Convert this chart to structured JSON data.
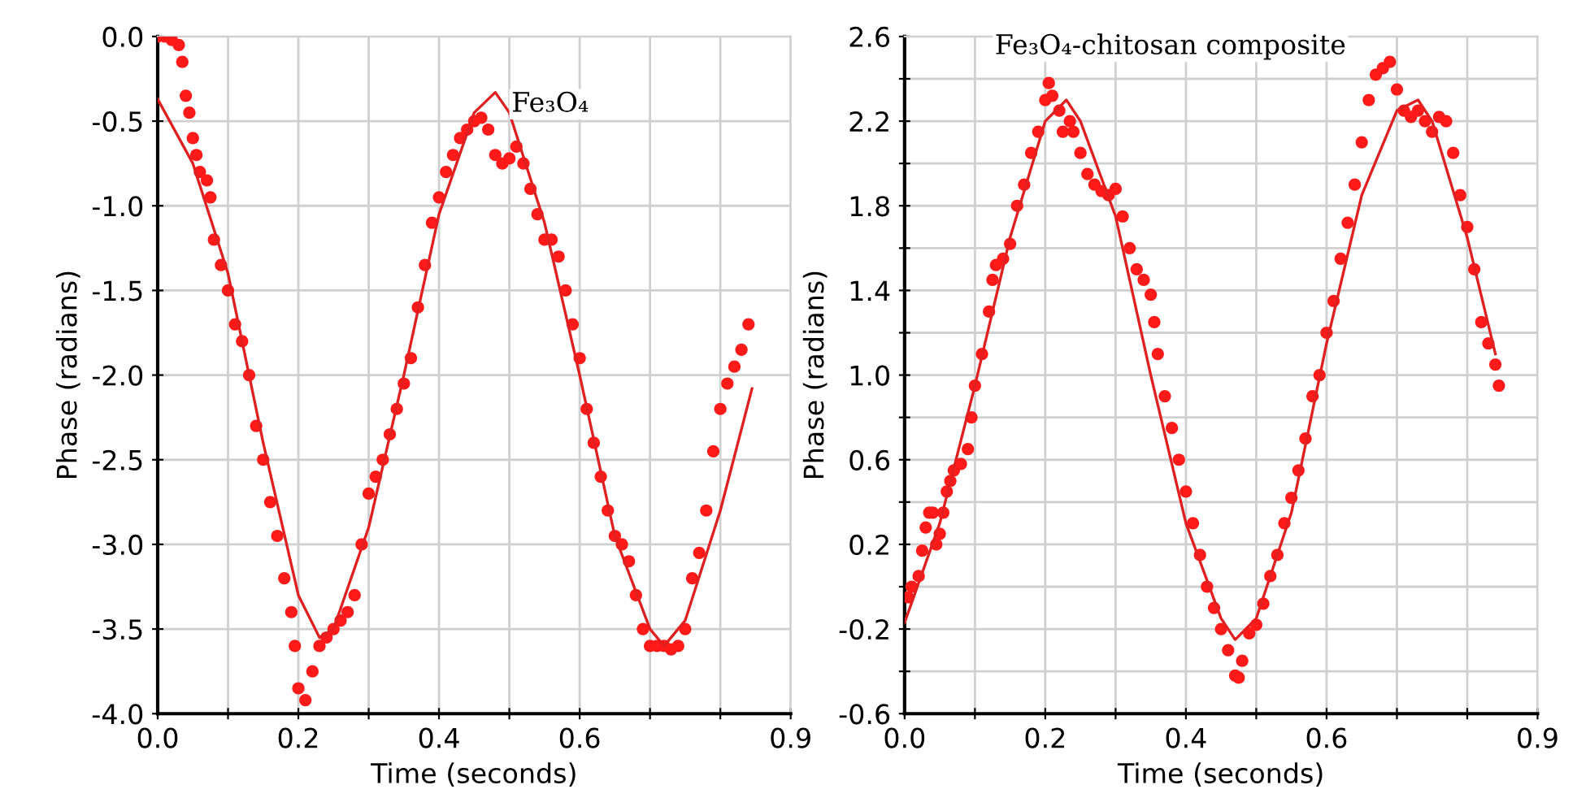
{
  "chart_data": [
    {
      "type": "scatter",
      "xlabel": "Time (seconds)",
      "ylabel": "Phase (radians)",
      "annotations": [
        "Fe₃O₄"
      ],
      "grid": true,
      "xlim": [
        0,
        0.9
      ],
      "xticks": [
        {
          "value": 0.0,
          "label": "0.0"
        },
        {
          "value": 0.1,
          "label": null
        },
        {
          "value": 0.2,
          "label": "0.2"
        },
        {
          "value": 0.3,
          "label": null
        },
        {
          "value": 0.4,
          "label": "0.4"
        },
        {
          "value": 0.5,
          "label": null
        },
        {
          "value": 0.6,
          "label": "0.6"
        },
        {
          "value": 0.7,
          "label": null
        },
        {
          "value": 0.8,
          "label": null
        },
        {
          "value": 0.9,
          "label": "0.9"
        }
      ],
      "ylim": [
        -4.0,
        0.0
      ],
      "yticks": [
        {
          "value": -4.0,
          "label": "-4.0"
        },
        {
          "value": -3.5,
          "label": "-3.5"
        },
        {
          "value": -3.0,
          "label": "-3.0"
        },
        {
          "value": -2.5,
          "label": "-2.5"
        },
        {
          "value": -2.0,
          "label": "-2.0"
        },
        {
          "value": -1.5,
          "label": "-1.5"
        },
        {
          "value": -1.0,
          "label": "-1.0"
        },
        {
          "value": -0.5,
          "label": "-0.5"
        },
        {
          "value": 0.0,
          "label": "0.0"
        }
      ],
      "series": [
        {
          "marker": "circle",
          "color": "#ff1a1a",
          "x": [
            0.0,
            0.01,
            0.02,
            0.03,
            0.035,
            0.04,
            0.045,
            0.05,
            0.055,
            0.06,
            0.07,
            0.075,
            0.08,
            0.09,
            0.1,
            0.11,
            0.12,
            0.13,
            0.14,
            0.15,
            0.16,
            0.17,
            0.18,
            0.19,
            0.195,
            0.2,
            0.21,
            0.22,
            0.23,
            0.24,
            0.25,
            0.26,
            0.27,
            0.28,
            0.29,
            0.3,
            0.31,
            0.32,
            0.33,
            0.34,
            0.35,
            0.36,
            0.37,
            0.38,
            0.39,
            0.4,
            0.41,
            0.42,
            0.43,
            0.44,
            0.45,
            0.46,
            0.47,
            0.48,
            0.49,
            0.5,
            0.51,
            0.52,
            0.53,
            0.54,
            0.55,
            0.56,
            0.57,
            0.58,
            0.59,
            0.6,
            0.61,
            0.62,
            0.63,
            0.64,
            0.65,
            0.66,
            0.67,
            0.68,
            0.69,
            0.7,
            0.71,
            0.72,
            0.73,
            0.74,
            0.75,
            0.76,
            0.77,
            0.78,
            0.79,
            0.8,
            0.81,
            0.82,
            0.83,
            0.84
          ],
          "values": [
            0.0,
            0.0,
            -0.02,
            -0.05,
            -0.15,
            -0.35,
            -0.45,
            -0.6,
            -0.7,
            -0.8,
            -0.85,
            -0.95,
            -1.2,
            -1.35,
            -1.5,
            -1.7,
            -1.8,
            -2.0,
            -2.3,
            -2.5,
            -2.75,
            -2.95,
            -3.2,
            -3.4,
            -3.6,
            -3.85,
            -3.92,
            -3.75,
            -3.6,
            -3.55,
            -3.5,
            -3.45,
            -3.4,
            -3.3,
            -3.0,
            -2.7,
            -2.6,
            -2.5,
            -2.35,
            -2.2,
            -2.05,
            -1.9,
            -1.6,
            -1.35,
            -1.1,
            -0.95,
            -0.8,
            -0.7,
            -0.6,
            -0.55,
            -0.5,
            -0.48,
            -0.55,
            -0.7,
            -0.75,
            -0.72,
            -0.65,
            -0.75,
            -0.9,
            -1.05,
            -1.2,
            -1.2,
            -1.3,
            -1.5,
            -1.7,
            -1.9,
            -2.2,
            -2.4,
            -2.6,
            -2.8,
            -2.95,
            -3.0,
            -3.1,
            -3.3,
            -3.5,
            -3.6,
            -3.6,
            -3.6,
            -3.62,
            -3.6,
            -3.5,
            -3.2,
            -3.05,
            -2.8,
            -2.45,
            -2.2,
            -2.05,
            -1.95,
            -1.85,
            -1.7
          ]
        },
        {
          "type": "line",
          "marker": "none",
          "color": "#e02020",
          "x": [
            0.0,
            0.05,
            0.1,
            0.15,
            0.2,
            0.23,
            0.25,
            0.3,
            0.35,
            0.4,
            0.45,
            0.48,
            0.5,
            0.55,
            0.6,
            0.65,
            0.7,
            0.72,
            0.75,
            0.8,
            0.845
          ],
          "values": [
            -0.37,
            -0.75,
            -1.4,
            -2.4,
            -3.3,
            -3.55,
            -3.5,
            -2.9,
            -2.0,
            -1.05,
            -0.45,
            -0.33,
            -0.45,
            -1.1,
            -2.0,
            -2.95,
            -3.5,
            -3.6,
            -3.45,
            -2.8,
            -2.08
          ]
        }
      ]
    },
    {
      "type": "scatter",
      "xlabel": "Time (seconds)",
      "ylabel": "Phase (radians)",
      "annotations": [
        "Fe₃O₄-chitosan composite"
      ],
      "grid": true,
      "xlim": [
        0,
        0.9
      ],
      "xticks": [
        {
          "value": 0.0,
          "label": "0.0"
        },
        {
          "value": 0.1,
          "label": null
        },
        {
          "value": 0.2,
          "label": "0.2"
        },
        {
          "value": 0.3,
          "label": null
        },
        {
          "value": 0.4,
          "label": "0.4"
        },
        {
          "value": 0.5,
          "label": null
        },
        {
          "value": 0.6,
          "label": "0.6"
        },
        {
          "value": 0.7,
          "label": null
        },
        {
          "value": 0.8,
          "label": null
        },
        {
          "value": 0.9,
          "label": "0.9"
        }
      ],
      "ylim": [
        -0.6,
        2.6
      ],
      "yticks": [
        {
          "value": -0.6,
          "label": "-0.6"
        },
        {
          "value": -0.4,
          "label": null
        },
        {
          "value": -0.2,
          "label": "-0.2"
        },
        {
          "value": 0.0,
          "label": null
        },
        {
          "value": 0.2,
          "label": "0.2"
        },
        {
          "value": 0.4,
          "label": null
        },
        {
          "value": 0.6,
          "label": "0.6"
        },
        {
          "value": 0.8,
          "label": null
        },
        {
          "value": 1.0,
          "label": "1.0"
        },
        {
          "value": 1.2,
          "label": null
        },
        {
          "value": 1.4,
          "label": "1.4"
        },
        {
          "value": 1.6,
          "label": null
        },
        {
          "value": 1.8,
          "label": "1.8"
        },
        {
          "value": 2.0,
          "label": null
        },
        {
          "value": 2.2,
          "label": "2.2"
        },
        {
          "value": 2.4,
          "label": null
        },
        {
          "value": 2.6,
          "label": "2.6"
        }
      ],
      "series": [
        {
          "marker": "circle",
          "color": "#ff1a1a",
          "x": [
            0.005,
            0.01,
            0.02,
            0.025,
            0.03,
            0.035,
            0.04,
            0.045,
            0.05,
            0.055,
            0.06,
            0.065,
            0.07,
            0.08,
            0.09,
            0.095,
            0.1,
            0.11,
            0.12,
            0.125,
            0.13,
            0.14,
            0.15,
            0.16,
            0.17,
            0.18,
            0.19,
            0.2,
            0.205,
            0.21,
            0.22,
            0.225,
            0.235,
            0.24,
            0.25,
            0.26,
            0.27,
            0.28,
            0.29,
            0.3,
            0.31,
            0.32,
            0.33,
            0.34,
            0.35,
            0.355,
            0.36,
            0.37,
            0.38,
            0.39,
            0.4,
            0.41,
            0.42,
            0.43,
            0.44,
            0.45,
            0.46,
            0.47,
            0.475,
            0.48,
            0.49,
            0.5,
            0.51,
            0.52,
            0.53,
            0.54,
            0.55,
            0.56,
            0.57,
            0.58,
            0.59,
            0.6,
            0.61,
            0.62,
            0.63,
            0.64,
            0.65,
            0.66,
            0.67,
            0.68,
            0.69,
            0.7,
            0.71,
            0.72,
            0.73,
            0.74,
            0.75,
            0.76,
            0.77,
            0.78,
            0.79,
            0.8,
            0.81,
            0.82,
            0.83,
            0.84,
            0.845
          ],
          "values": [
            -0.05,
            0.0,
            0.05,
            0.17,
            0.28,
            0.35,
            0.35,
            0.2,
            0.25,
            0.35,
            0.45,
            0.5,
            0.55,
            0.58,
            0.65,
            0.8,
            0.95,
            1.1,
            1.3,
            1.45,
            1.52,
            1.55,
            1.62,
            1.8,
            1.9,
            2.05,
            2.15,
            2.3,
            2.38,
            2.32,
            2.25,
            2.15,
            2.2,
            2.15,
            2.05,
            1.95,
            1.9,
            1.87,
            1.85,
            1.88,
            1.75,
            1.6,
            1.5,
            1.45,
            1.38,
            1.25,
            1.1,
            0.9,
            0.75,
            0.6,
            0.45,
            0.3,
            0.15,
            0.0,
            -0.1,
            -0.2,
            -0.3,
            -0.42,
            -0.43,
            -0.35,
            -0.22,
            -0.18,
            -0.08,
            0.05,
            0.15,
            0.3,
            0.42,
            0.55,
            0.7,
            0.9,
            1.0,
            1.2,
            1.35,
            1.55,
            1.72,
            1.9,
            2.1,
            2.3,
            2.42,
            2.45,
            2.48,
            2.35,
            2.25,
            2.22,
            2.25,
            2.2,
            2.15,
            2.22,
            2.2,
            2.05,
            1.85,
            1.7,
            1.5,
            1.25,
            1.15,
            1.05,
            0.95
          ]
        },
        {
          "type": "line",
          "marker": "none",
          "color": "#e02020",
          "x": [
            0.0,
            0.05,
            0.1,
            0.15,
            0.2,
            0.23,
            0.25,
            0.3,
            0.35,
            0.4,
            0.45,
            0.47,
            0.5,
            0.55,
            0.6,
            0.65,
            0.7,
            0.73,
            0.75,
            0.8,
            0.84
          ],
          "values": [
            -0.17,
            0.3,
            0.95,
            1.65,
            2.2,
            2.3,
            2.2,
            1.75,
            1.0,
            0.3,
            -0.15,
            -0.25,
            -0.15,
            0.35,
            1.15,
            1.85,
            2.25,
            2.3,
            2.2,
            1.65,
            1.1
          ]
        }
      ]
    }
  ]
}
